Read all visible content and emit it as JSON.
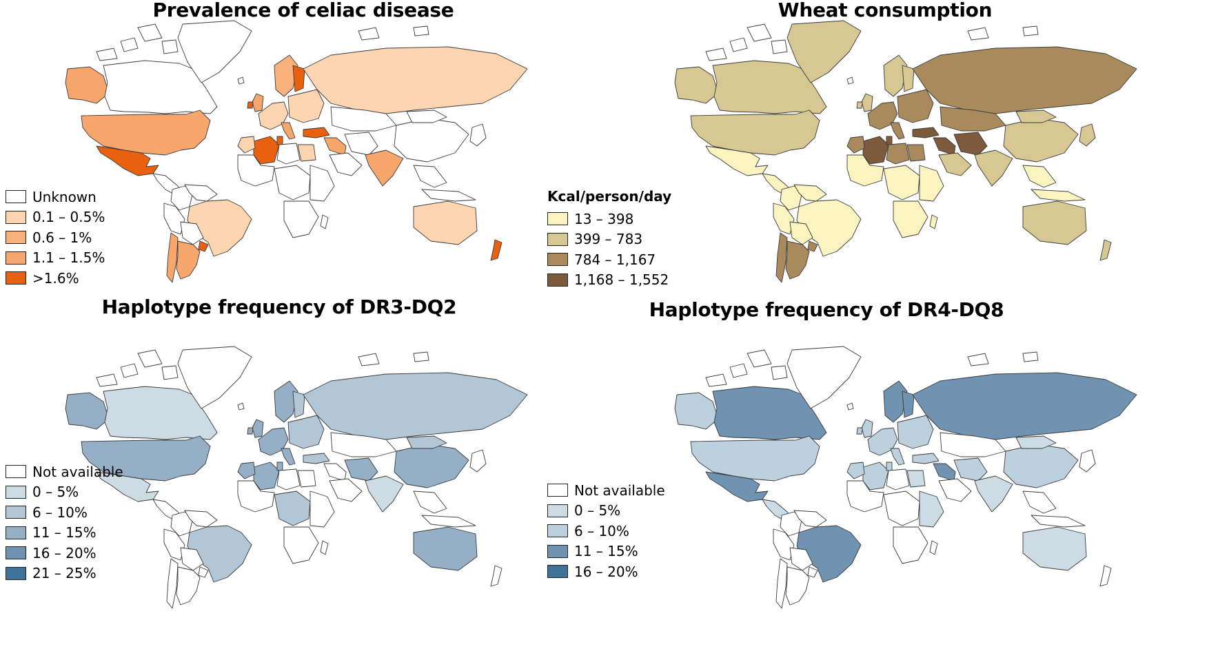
{
  "colors": {
    "border": "#3a3a3a",
    "none": "#ffffff",
    "celiac": [
      "#fdd5b0",
      "#f9b17b",
      "#f7a66c",
      "#e9600f"
    ],
    "wheat": [
      "#fbf4c0",
      "#d6c793",
      "#a88a5c",
      "#7c5a3b"
    ],
    "dq2": [
      "#cddbe4",
      "#b2c6d6",
      "#94afc6",
      "#6f93b0",
      "#3d7497"
    ],
    "dq8": [
      "#cddbe4",
      "#bdd0dd",
      "#6f93b0",
      "#3d7497"
    ]
  },
  "panels": [
    {
      "title": "Prevalence of celiac disease",
      "legend_heading": "",
      "palette": "celiac",
      "legend": [
        {
          "label": "Unknown",
          "level": -1
        },
        {
          "label": "0.1 – 0.5%",
          "level": 0
        },
        {
          "label": "0.6 – 1%",
          "level": 1
        },
        {
          "label": "1.1 – 1.5%",
          "level": 2
        },
        {
          "label": ">1.6%",
          "level": 3
        }
      ],
      "regions": {
        "alaska": 2,
        "canada": -1,
        "greenland": -1,
        "usa": 2,
        "mexico": 3,
        "central_america": -1,
        "colombia": -1,
        "venezuela": -1,
        "brazil": 0,
        "peru": -1,
        "bolivia": -1,
        "chile": 2,
        "argentina": 2,
        "uruguay": 3,
        "scandinavia": 1,
        "finland": 3,
        "uk": 2,
        "ireland": 3,
        "western_europe": 0,
        "eastern_europe": 0,
        "italy": 2,
        "russia": 0,
        "kazakhstan": -1,
        "turkey": 3,
        "middle_east": 2,
        "saudi": -1,
        "iran": -1,
        "india": 2,
        "china": -1,
        "mongolia": -1,
        "se_asia": -1,
        "japan": -1,
        "algeria": 3,
        "morocco": 0,
        "tunisia": 3,
        "libya": -1,
        "egypt": 0,
        "west_africa": -1,
        "central_africa": -1,
        "east_africa": -1,
        "southern_africa": -1,
        "madagascar": -1,
        "australia": 0,
        "new_zealand": 3,
        "indonesia": -1
      }
    },
    {
      "title": "Wheat consumption",
      "legend_heading": "Kcal/person/day",
      "palette": "wheat",
      "legend": [
        {
          "label": "13 – 398",
          "level": 0
        },
        {
          "label": "399 – 783",
          "level": 1
        },
        {
          "label": "784 – 1,167",
          "level": 2
        },
        {
          "label": "1,168 – 1,552",
          "level": 3
        }
      ],
      "regions": {
        "alaska": 1,
        "canada": 1,
        "greenland": 1,
        "usa": 1,
        "mexico": 0,
        "central_america": 0,
        "colombia": 0,
        "venezuela": 0,
        "brazil": 0,
        "peru": 0,
        "bolivia": 0,
        "chile": 2,
        "argentina": 2,
        "uruguay": 2,
        "scandinavia": 1,
        "finland": 1,
        "uk": 1,
        "ireland": 1,
        "western_europe": 2,
        "eastern_europe": 2,
        "italy": 2,
        "russia": 2,
        "kazakhstan": 2,
        "turkey": 3,
        "middle_east": 3,
        "saudi": 1,
        "iran": 3,
        "india": 1,
        "china": 1,
        "mongolia": 1,
        "se_asia": 0,
        "japan": 1,
        "algeria": 3,
        "morocco": 2,
        "tunisia": 3,
        "libya": 2,
        "egypt": 2,
        "west_africa": 0,
        "central_africa": 0,
        "east_africa": 0,
        "southern_africa": 0,
        "madagascar": 0,
        "australia": 1,
        "new_zealand": 1,
        "indonesia": 0
      }
    },
    {
      "title": "Haplotype frequency of DR3-DQ2",
      "legend_heading": "",
      "palette": "dq2",
      "legend": [
        {
          "label": "Not available",
          "level": -1
        },
        {
          "label": "0 – 5%",
          "level": 0
        },
        {
          "label": "6 – 10%",
          "level": 1
        },
        {
          "label": "11 – 15%",
          "level": 2
        },
        {
          "label": "16 – 20%",
          "level": 3
        },
        {
          "label": "21 – 25%",
          "level": 4
        }
      ],
      "regions": {
        "alaska": 2,
        "canada": 0,
        "greenland": -1,
        "usa": 2,
        "mexico": 0,
        "central_america": -1,
        "colombia": -1,
        "venezuela": -1,
        "brazil": 1,
        "peru": -1,
        "bolivia": -1,
        "chile": -1,
        "argentina": -1,
        "uruguay": -1,
        "scandinavia": 2,
        "finland": 1,
        "uk": 2,
        "ireland": 2,
        "western_europe": 2,
        "eastern_europe": 1,
        "italy": 2,
        "russia": 1,
        "kazakhstan": -1,
        "turkey": 1,
        "middle_east": -1,
        "saudi": -1,
        "iran": 2,
        "india": 0,
        "china": 2,
        "mongolia": 1,
        "se_asia": -1,
        "japan": -1,
        "algeria": 2,
        "morocco": 2,
        "tunisia": 2,
        "libya": -1,
        "egypt": -1,
        "west_africa": -1,
        "central_africa": 1,
        "east_africa": -1,
        "southern_africa": -1,
        "madagascar": -1,
        "australia": 2,
        "new_zealand": -1,
        "indonesia": -1
      }
    },
    {
      "title": "Haplotype frequency of DR4-DQ8",
      "legend_heading": "",
      "palette": "dq8",
      "legend": [
        {
          "label": "Not available",
          "level": -1
        },
        {
          "label": "0 – 5%",
          "level": 0
        },
        {
          "label": "6 – 10%",
          "level": 1
        },
        {
          "label": "11 – 15%",
          "level": 2
        },
        {
          "label": "16 – 20%",
          "level": 3
        }
      ],
      "regions": {
        "alaska": 1,
        "canada": 2,
        "greenland": -1,
        "usa": 1,
        "mexico": 2,
        "central_america": 0,
        "colombia": -1,
        "venezuela": -1,
        "brazil": 2,
        "peru": -1,
        "bolivia": -1,
        "chile": -1,
        "argentina": -1,
        "uruguay": -1,
        "scandinavia": 2,
        "finland": 2,
        "uk": 1,
        "ireland": 1,
        "western_europe": 1,
        "eastern_europe": 1,
        "italy": 1,
        "russia": 2,
        "kazakhstan": -1,
        "turkey": 1,
        "middle_east": 2,
        "saudi": -1,
        "iran": 1,
        "india": 0,
        "china": 1,
        "mongolia": 0,
        "se_asia": -1,
        "japan": -1,
        "algeria": 1,
        "morocco": 1,
        "tunisia": 1,
        "libya": -1,
        "egypt": 0,
        "west_africa": -1,
        "central_africa": -1,
        "east_africa": 0,
        "southern_africa": -1,
        "madagascar": -1,
        "australia": 0,
        "new_zealand": -1,
        "indonesia": -1
      }
    }
  ]
}
